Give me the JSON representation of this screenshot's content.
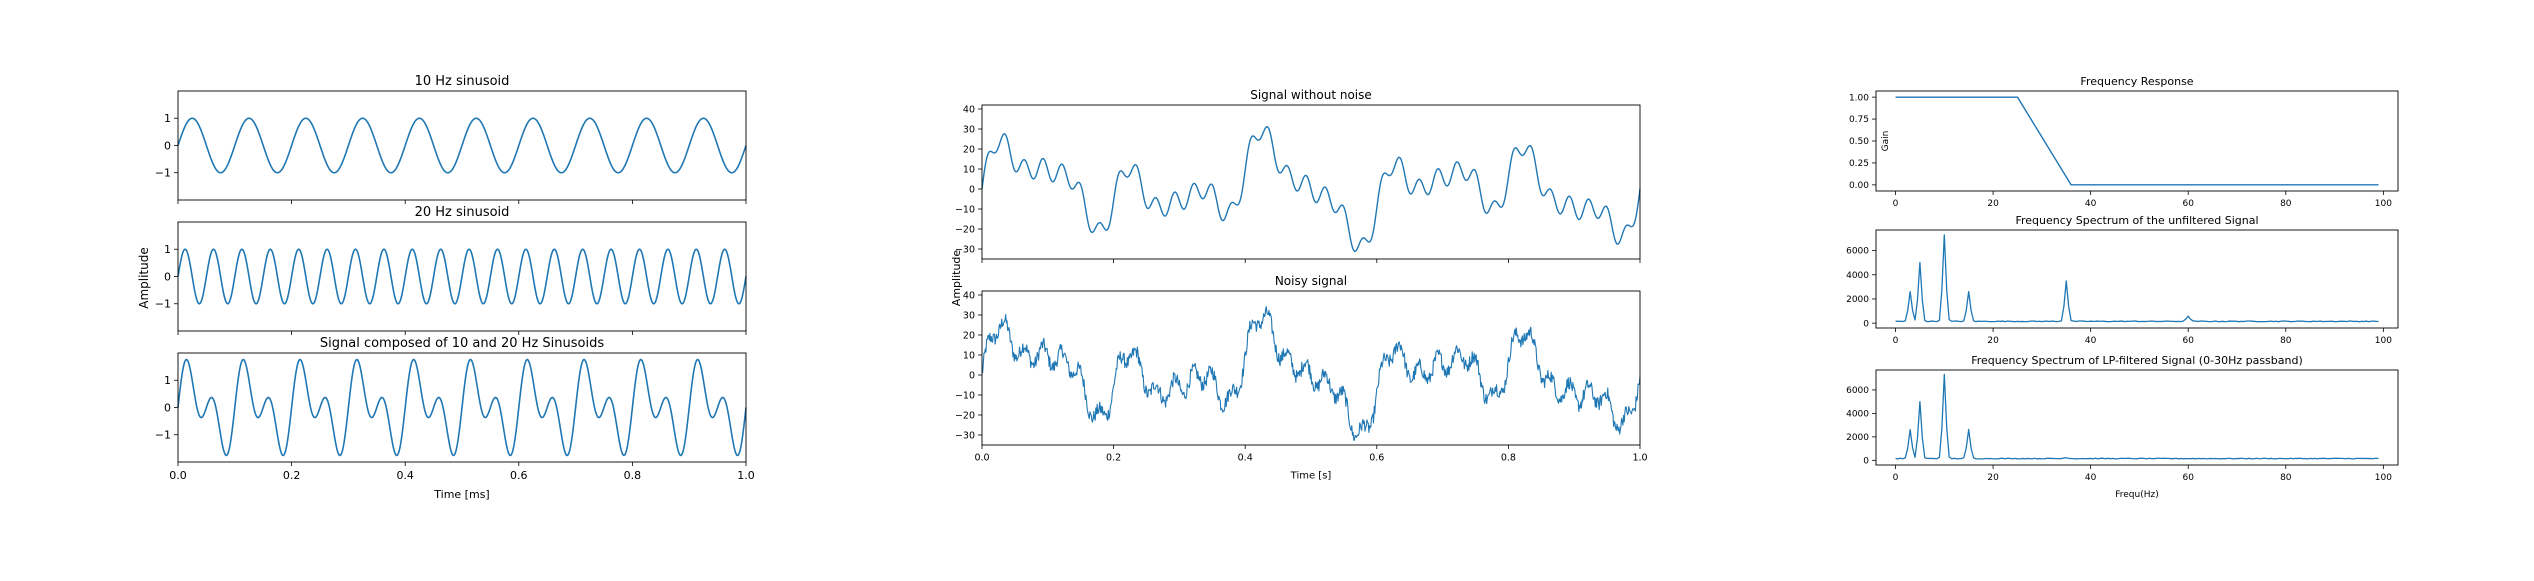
{
  "figure": {
    "colors": {
      "line": "#1f77b4",
      "axis": "#000000",
      "background": "#ffffff"
    }
  },
  "chart_data": [
    {
      "type": "line",
      "title": "10 Hz sinusoid",
      "xlabel": "",
      "ylabel": "",
      "signal": {
        "kind": "sine",
        "components": [
          {
            "frequency": 10,
            "amplitude": 1
          }
        ]
      },
      "xlim": [
        0,
        1
      ],
      "ylim": [
        -2,
        2
      ],
      "xticks": [
        0.0,
        0.2,
        0.4,
        0.6,
        0.8,
        1.0
      ],
      "xtick_labels_shown": false,
      "yticks": [
        1,
        0,
        -1
      ],
      "ytick_labels": [
        "1",
        "0",
        "−1"
      ]
    },
    {
      "type": "line",
      "title": "20 Hz sinusoid",
      "xlabel": "",
      "ylabel": "",
      "signal": {
        "kind": "sine",
        "components": [
          {
            "frequency": 20,
            "amplitude": 1
          }
        ]
      },
      "xlim": [
        0,
        1
      ],
      "ylim": [
        -2,
        2
      ],
      "xticks": [
        0.0,
        0.2,
        0.4,
        0.6,
        0.8,
        1.0
      ],
      "xtick_labels_shown": false,
      "yticks": [
        1,
        0,
        -1
      ],
      "ytick_labels": [
        "1",
        "0",
        "−1"
      ]
    },
    {
      "type": "line",
      "title": "Signal composed of 10 and 20 Hz Sinusoids",
      "xlabel": "Time [ms]",
      "ylabel": "",
      "signal": {
        "kind": "sine",
        "components": [
          {
            "frequency": 10,
            "amplitude": 1
          },
          {
            "frequency": 20,
            "amplitude": 1
          }
        ]
      },
      "xlim": [
        0,
        1
      ],
      "ylim": [
        -2,
        2
      ],
      "xticks": [
        0.0,
        0.2,
        0.4,
        0.6,
        0.8,
        1.0
      ],
      "xtick_labels": [
        "0.0",
        "0.2",
        "0.4",
        "0.6",
        "0.8",
        "1.0"
      ],
      "yticks": [
        1,
        0,
        -1
      ],
      "ytick_labels": [
        "1",
        "0",
        "−1"
      ]
    },
    {
      "type": "line",
      "title": "Signal without noise",
      "xlabel": "",
      "ylabel": "",
      "signal": {
        "kind": "sine",
        "components": [
          {
            "frequency": 3,
            "amplitude": 10
          },
          {
            "frequency": 5,
            "amplitude": 10
          },
          {
            "frequency": 10,
            "amplitude": 10
          },
          {
            "frequency": 15,
            "amplitude": 4
          },
          {
            "frequency": 35,
            "amplitude": 5
          }
        ]
      },
      "xlim": [
        0,
        1
      ],
      "ylim": [
        -35,
        42
      ],
      "xticks": [
        0.0,
        0.2,
        0.4,
        0.6,
        0.8,
        1.0
      ],
      "xtick_labels_shown": false,
      "yticks": [
        40,
        30,
        20,
        10,
        0,
        -10,
        -20,
        -30
      ],
      "ytick_labels": [
        "40",
        "30",
        "20",
        "10",
        "0",
        "−10",
        "−20",
        "−30"
      ]
    },
    {
      "type": "line",
      "title": "Noisy signal",
      "xlabel": "Time [s]",
      "ylabel": "",
      "signal": {
        "kind": "sine",
        "components": [
          {
            "frequency": 3,
            "amplitude": 10
          },
          {
            "frequency": 5,
            "amplitude": 10
          },
          {
            "frequency": 10,
            "amplitude": 10
          },
          {
            "frequency": 15,
            "amplitude": 4
          },
          {
            "frequency": 35,
            "amplitude": 5
          }
        ],
        "noise_amplitude": 2
      },
      "xlim": [
        0,
        1
      ],
      "ylim": [
        -35,
        42
      ],
      "xticks": [
        0.0,
        0.2,
        0.4,
        0.6,
        0.8,
        1.0
      ],
      "xtick_labels": [
        "0.0",
        "0.2",
        "0.4",
        "0.6",
        "0.8",
        "1.0"
      ],
      "yticks": [
        40,
        30,
        20,
        10,
        0,
        -10,
        -20,
        -30
      ],
      "ytick_labels": [
        "40",
        "30",
        "20",
        "10",
        "0",
        "−10",
        "−20",
        "−30"
      ]
    },
    {
      "type": "line",
      "title": "Frequency Response",
      "xlabel": "",
      "ylabel": "Gain",
      "x": [
        0,
        25,
        36,
        99
      ],
      "y": [
        1.0,
        1.0,
        0.0,
        0.0
      ],
      "xlim": [
        -4,
        103
      ],
      "ylim": [
        -0.07,
        1.07
      ],
      "xticks": [
        0,
        20,
        40,
        60,
        80,
        100
      ],
      "xtick_labels": [
        "0",
        "20",
        "40",
        "60",
        "80",
        "100"
      ],
      "yticks": [
        1.0,
        0.75,
        0.5,
        0.25,
        0.0
      ],
      "ytick_labels": [
        "1.00",
        "0.75",
        "0.50",
        "0.25",
        "0.00"
      ]
    },
    {
      "type": "line",
      "title": "Frequency Spectrum of the unfiltered Signal",
      "xlabel": "",
      "ylabel": "",
      "baseline": 150,
      "peaks": [
        {
          "freq": 3,
          "value": 2600
        },
        {
          "freq": 5,
          "value": 5000
        },
        {
          "freq": 10,
          "value": 7300
        },
        {
          "freq": 15,
          "value": 2600
        },
        {
          "freq": 35,
          "value": 3500
        },
        {
          "freq": 60,
          "value": 600
        }
      ],
      "x_range": [
        0,
        99
      ],
      "xlim": [
        -4,
        103
      ],
      "ylim": [
        -400,
        7700
      ],
      "xticks": [
        0,
        20,
        40,
        60,
        80,
        100
      ],
      "xtick_labels": [
        "0",
        "20",
        "40",
        "60",
        "80",
        "100"
      ],
      "yticks": [
        6000,
        4000,
        2000,
        0
      ],
      "ytick_labels": [
        "6000",
        "4000",
        "2000",
        "0"
      ]
    },
    {
      "type": "line",
      "title": "Frequency Spectrum of LP-filtered Signal (0-30Hz passband)",
      "xlabel": "Frequ(Hz)",
      "ylabel": "",
      "baseline": 150,
      "peaks": [
        {
          "freq": 3,
          "value": 2600
        },
        {
          "freq": 5,
          "value": 5000
        },
        {
          "freq": 10,
          "value": 7300
        },
        {
          "freq": 15,
          "value": 2600
        },
        {
          "freq": 35,
          "value": 250
        }
      ],
      "x_range": [
        0,
        99
      ],
      "xlim": [
        -4,
        103
      ],
      "ylim": [
        -400,
        7700
      ],
      "xticks": [
        0,
        20,
        40,
        60,
        80,
        100
      ],
      "xtick_labels": [
        "0",
        "20",
        "40",
        "60",
        "80",
        "100"
      ],
      "yticks": [
        6000,
        4000,
        2000,
        0
      ],
      "ytick_labels": [
        "6000",
        "4000",
        "2000",
        "0"
      ]
    }
  ],
  "shared_labels": {
    "left_ylabel": "Amplitude",
    "middle_ylabel": "Amplitude"
  }
}
